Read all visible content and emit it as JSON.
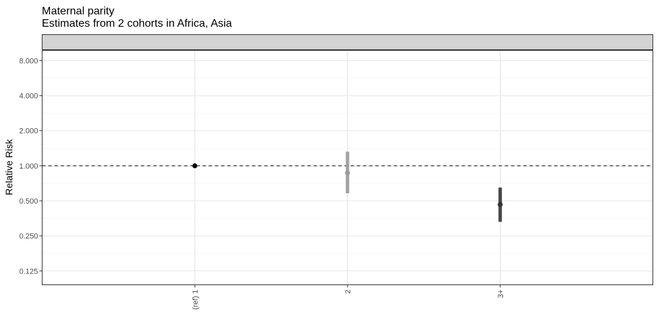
{
  "chart_data": {
    "type": "scatter",
    "title": "Maternal parity",
    "subtitle": "Estimates from 2 cohorts in Africa, Asia",
    "xlabel": "",
    "ylabel": "Relative Risk",
    "y_scale": "log2",
    "ylim": [
      0.095,
      9.8
    ],
    "y_ticks": [
      0.125,
      0.25,
      0.5,
      1,
      2,
      4,
      8
    ],
    "y_tick_labels": [
      "0.125",
      "0.250",
      "0.500",
      "1.000",
      "2.000",
      "4.000",
      "8.000"
    ],
    "categories": [
      "(ref) 1",
      "2",
      "3+"
    ],
    "reference_line": 1,
    "grid": true,
    "facet_strip": true,
    "points": [
      {
        "category": "(ref) 1",
        "estimate": 1.0,
        "lower": null,
        "upper": null,
        "color": "#000000"
      },
      {
        "category": "2",
        "estimate": 0.87,
        "lower": 0.58,
        "upper": 1.32,
        "color": "#999999"
      },
      {
        "category": "3+",
        "estimate": 0.465,
        "lower": 0.33,
        "upper": 0.65,
        "color": "#333333"
      }
    ]
  },
  "colors": {
    "panel_border": "#333333",
    "strip_fill": "#d3d3d3",
    "grid_major": "#ebebeb",
    "grid_minor": "#f4f4f4",
    "reference_line": "#333333"
  }
}
